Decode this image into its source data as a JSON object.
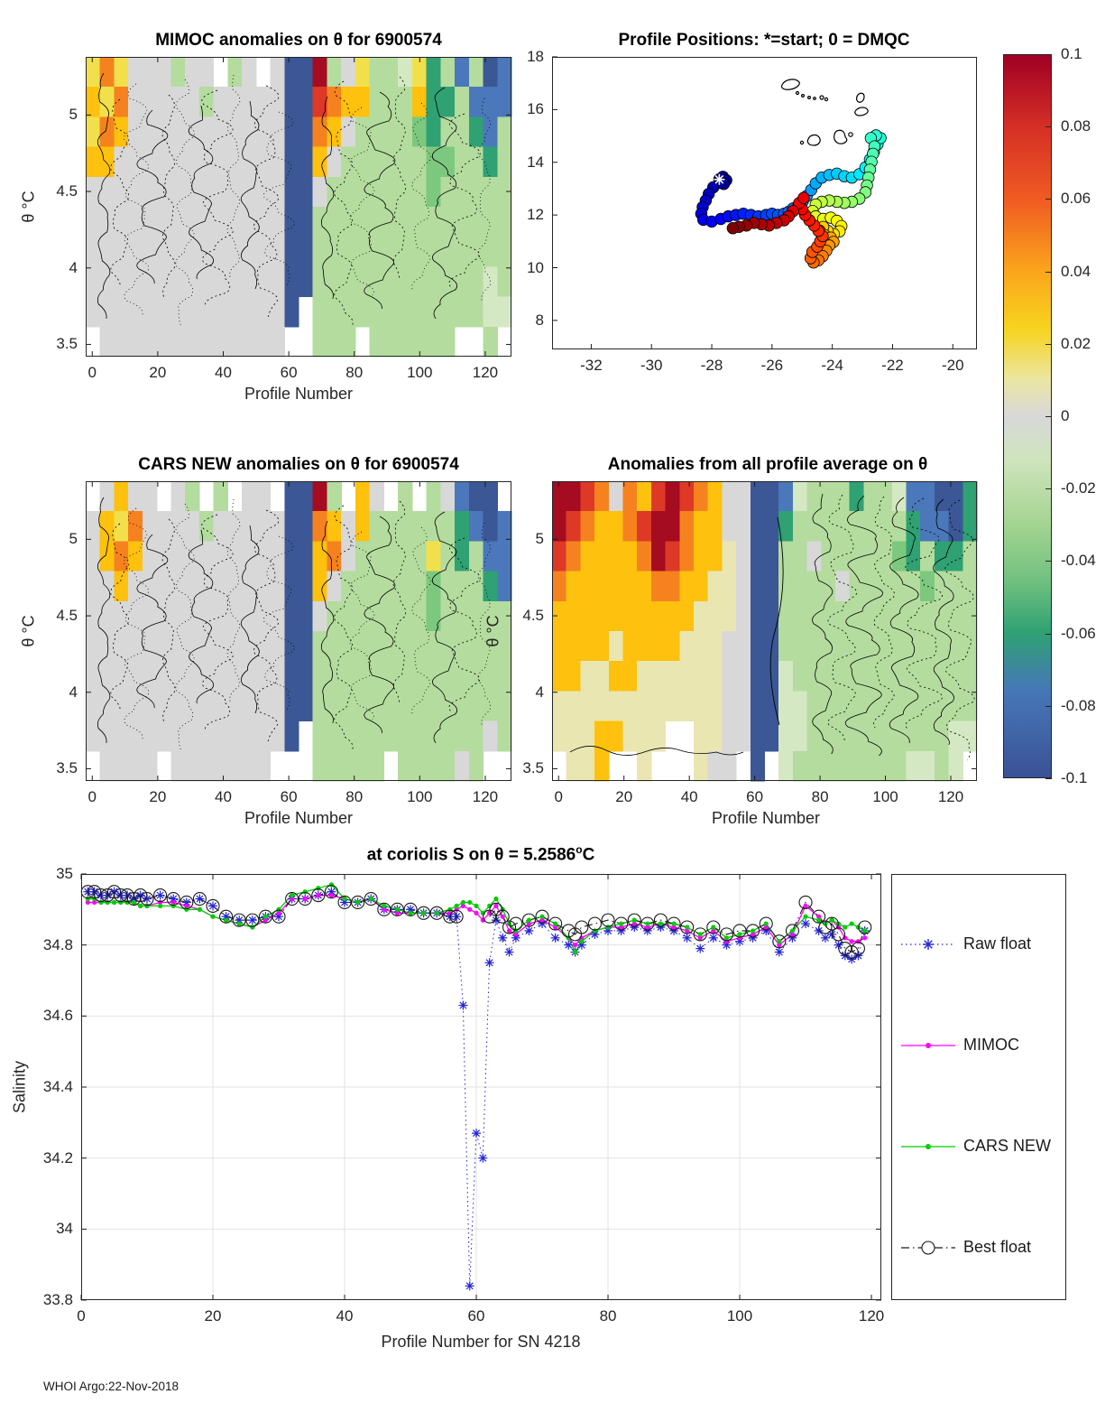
{
  "footer": "WHOI Argo:22-Nov-2018",
  "palette": {
    "R": "#a50b21",
    "r": "#dd3926",
    "o": "#f5821f",
    "y": "#fdc10e",
    "Y": "#f1e04c",
    "p": "#e9e6b2",
    "G": "#d8d8d8",
    "c": "#d5e8c4",
    "g": "#b4dc9e",
    "E": "#7dc87f",
    "T": "#2fa173",
    "B": "#4a78ba",
    "N": "#3b5795"
  },
  "colorbar": {
    "ticks": [
      0.1,
      0.08,
      0.06,
      0.04,
      0.02,
      0,
      -0.02,
      -0.04,
      -0.06,
      -0.08,
      -0.1
    ],
    "stops": [
      [
        0,
        "#9f0024"
      ],
      [
        0.1,
        "#d62f26"
      ],
      [
        0.2,
        "#f05b22"
      ],
      [
        0.3,
        "#fba61c"
      ],
      [
        0.38,
        "#f7d41f"
      ],
      [
        0.45,
        "#ebe6a4"
      ],
      [
        0.5,
        "#d8d8d8"
      ],
      [
        0.56,
        "#cfe4bd"
      ],
      [
        0.65,
        "#a4d491"
      ],
      [
        0.73,
        "#6fc07f"
      ],
      [
        0.8,
        "#2fa173"
      ],
      [
        0.88,
        "#4677b8"
      ],
      [
        1,
        "#3a5295"
      ]
    ]
  },
  "legend": {
    "entries": [
      {
        "label": "Raw float",
        "color": "#2424d9",
        "line": "dotted",
        "marker": "asterisk"
      },
      {
        "label": "MIMOC",
        "color": "#ff00ff",
        "line": "solid",
        "marker": "dot"
      },
      {
        "label": "CARS NEW",
        "color": "#00cc00",
        "line": "solid",
        "marker": "dot"
      },
      {
        "label": "Best float",
        "color": "#1a1a1a",
        "line": "dashdot",
        "marker": "circle"
      }
    ]
  },
  "chart_data": [
    {
      "type": "heatmap",
      "id": "tl",
      "title": "MIMOC anomalies on θ  for 6900574",
      "xlabel": "Profile Number",
      "ylabel": "θ °C",
      "xticks": [
        0,
        20,
        40,
        60,
        80,
        100,
        120
      ],
      "yticks": [
        5,
        4.5,
        4,
        3.5
      ],
      "xlim": [
        -2,
        128
      ],
      "ylim": [
        5.38,
        3.42
      ],
      "value_range": [
        0.1,
        -0.1
      ],
      "grid": [
        "YoYGGGgGGWgGWGNNRgGYggcYTgBgNB",
        "yYoGGGGGgGGGGGNNroyygggyTTgBBB",
        "YoyGGGGGGGGGGGNNoyGggggETggTBg",
        "yyGGGGGGGGGGGGNNyGggggggEEggTg",
        "GGGGGGGGGGGGGGNNGgggggggEggggg",
        "GGGGGGGGGGGGGGNNgggggggggggggg",
        "GGGGGGGGGGGGGGNNgggggggggggggg",
        "GGGGGGGGGGGGGGNNggggggggggggcg",
        "GGGGGGGGGGGGGGNWggggggggggggcc",
        "WGGGGGGGGGGGGGWWgggWggggggWWgW"
      ],
      "contours": "dense"
    },
    {
      "type": "scatter",
      "id": "tr",
      "title": "Profile Positions: *=start; 0 = DMQC",
      "xticks": [
        -32,
        -30,
        -28,
        -26,
        -24,
        -22,
        -20
      ],
      "yticks": [
        18,
        16,
        14,
        12,
        10,
        8
      ],
      "xlim": [
        -33.3,
        -19.2
      ],
      "ylim": [
        18,
        6.9
      ],
      "colormap": "jet-by-profile-order",
      "start_marker": "*",
      "points": [
        [
          -27.75,
          13.35
        ],
        [
          -27.63,
          13.45
        ],
        [
          -27.52,
          13.32
        ],
        [
          -27.6,
          13.18
        ],
        [
          -27.72,
          13.22
        ],
        [
          -27.95,
          13.05
        ],
        [
          -28.1,
          12.8
        ],
        [
          -28.2,
          12.55
        ],
        [
          -28.3,
          12.3
        ],
        [
          -28.35,
          12.05
        ],
        [
          -28.28,
          11.82
        ],
        [
          -28.0,
          11.75
        ],
        [
          -27.7,
          11.85
        ],
        [
          -27.45,
          11.95
        ],
        [
          -27.2,
          12.0
        ],
        [
          -26.95,
          12.05
        ],
        [
          -26.7,
          12.0
        ],
        [
          -26.45,
          11.95
        ],
        [
          -26.2,
          12.0
        ],
        [
          -26.0,
          12.05
        ],
        [
          -25.8,
          12.0
        ],
        [
          -25.6,
          12.05
        ],
        [
          -25.45,
          12.12
        ],
        [
          -25.3,
          12.25
        ],
        [
          -25.12,
          12.38
        ],
        [
          -24.98,
          12.52
        ],
        [
          -24.85,
          12.72
        ],
        [
          -24.7,
          12.95
        ],
        [
          -24.55,
          13.2
        ],
        [
          -24.35,
          13.42
        ],
        [
          -24.1,
          13.52
        ],
        [
          -23.85,
          13.57
        ],
        [
          -23.6,
          13.47
        ],
        [
          -23.35,
          13.42
        ],
        [
          -23.1,
          13.55
        ],
        [
          -22.9,
          13.8
        ],
        [
          -22.75,
          14.1
        ],
        [
          -22.62,
          14.4
        ],
        [
          -22.5,
          14.68
        ],
        [
          -22.4,
          14.92
        ],
        [
          -22.55,
          15.02
        ],
        [
          -22.72,
          14.92
        ],
        [
          -22.6,
          14.6
        ],
        [
          -22.65,
          14.32
        ],
        [
          -22.7,
          14.02
        ],
        [
          -22.75,
          13.72
        ],
        [
          -22.8,
          13.42
        ],
        [
          -22.85,
          13.12
        ],
        [
          -22.9,
          12.86
        ],
        [
          -23.1,
          12.62
        ],
        [
          -23.35,
          12.5
        ],
        [
          -23.6,
          12.46
        ],
        [
          -23.85,
          12.5
        ],
        [
          -24.1,
          12.55
        ],
        [
          -24.35,
          12.5
        ],
        [
          -24.55,
          12.4
        ],
        [
          -24.65,
          12.15
        ],
        [
          -24.55,
          11.95
        ],
        [
          -24.3,
          11.85
        ],
        [
          -24.05,
          11.9
        ],
        [
          -23.85,
          11.78
        ],
        [
          -23.7,
          11.58
        ],
        [
          -23.76,
          11.38
        ],
        [
          -23.95,
          11.28
        ],
        [
          -24.15,
          11.4
        ],
        [
          -24.3,
          11.55
        ],
        [
          -24.42,
          11.4
        ],
        [
          -24.26,
          11.24
        ],
        [
          -24.05,
          11.14
        ],
        [
          -23.96,
          10.98
        ],
        [
          -24.1,
          10.84
        ],
        [
          -24.2,
          10.64
        ],
        [
          -24.32,
          10.44
        ],
        [
          -24.46,
          10.28
        ],
        [
          -24.62,
          10.2
        ],
        [
          -24.72,
          10.36
        ],
        [
          -24.66,
          10.6
        ],
        [
          -24.5,
          10.8
        ],
        [
          -24.4,
          11.0
        ],
        [
          -24.32,
          11.2
        ],
        [
          -24.46,
          11.4
        ],
        [
          -24.6,
          11.6
        ],
        [
          -24.76,
          11.8
        ],
        [
          -24.9,
          12.0
        ],
        [
          -25.0,
          12.22
        ],
        [
          -25.1,
          12.45
        ],
        [
          -24.95,
          12.65
        ],
        [
          -25.3,
          12.15
        ],
        [
          -25.45,
          11.95
        ],
        [
          -25.6,
          11.8
        ],
        [
          -25.85,
          11.7
        ],
        [
          -26.1,
          11.6
        ],
        [
          -26.35,
          11.65
        ],
        [
          -26.6,
          11.7
        ],
        [
          -26.85,
          11.6
        ],
        [
          -27.1,
          11.55
        ],
        [
          -27.3,
          11.5
        ]
      ]
    },
    {
      "type": "heatmap",
      "id": "ml",
      "title": "CARS NEW anomalies on θ for 6900574",
      "xlabel": "Profile Number",
      "ylabel": "θ °C",
      "xticks": [
        0,
        20,
        40,
        60,
        80,
        100,
        120
      ],
      "yticks": [
        5,
        4.5,
        4,
        3.5
      ],
      "xlim": [
        -2,
        128
      ],
      "ylim": [
        5.38,
        3.42
      ],
      "value_range": [
        0.1,
        -0.1
      ],
      "grid": [
        "WGyGGWGgWgWGGWNNRgWyGWgWgGBNNW",
        "GyYoGGGGgGGGGGNNoyGyggggggTBNB",
        "GyoyGGGGGGGGGGNNyoGgggggYgTgBB",
        "GGyGGGGGGGGGGGNNyGggggggEgggTB",
        "GGGGGGGGGGGGGGNNGgggggggEggggg",
        "GGGGGGGGGGGGGGNNgggggggggggggg",
        "GGGGGGGGGGGGGGNNgggggggggggggg",
        "GGGGGGGGGGGGGGNNgggggggggggggg",
        "GGGGGGGGGGGGGGNWggggggggggggGg",
        "WGGGGWGGGGGGGWWWgggggWggggGgWW"
      ],
      "contours": "dense"
    },
    {
      "type": "heatmap",
      "id": "mr",
      "title": "Anomalies from all profile average on θ",
      "xlabel": "Profile Number",
      "ylabel": "θ °C",
      "xticks": [
        0,
        20,
        40,
        60,
        80,
        100,
        120
      ],
      "yticks": [
        5,
        4.5,
        4,
        3.5
      ],
      "xlim": [
        -2,
        128
      ],
      "ylim": [
        5.38,
        3.42
      ],
      "value_range": [
        0.1,
        -0.1
      ],
      "grid": [
        "RRroGoyrRroyGGNNBcgggTggcBBNNT",
        "RroyyorRRoyyGGNNTggggggggTBBNT",
        "royyyyoRroyypGNNggGgggggETgTTg",
        "oyyyyyyooyyppGNNggggGgggggEggg",
        "yyyyyyyyyypppGNNgggggggggggggg",
        "yyyypyyyypppGGNNgggggggggggggg",
        "yyppyyppppppGGNNcggggggggggggg",
        "ppppppppppppGGNNccgggggggggggg",
        "pppyypppWWppGGNNccggggggggggcc",
        "WppyWWpWWWpGGWNWcggggggggccgcW"
      ],
      "contours": "sparse-right"
    },
    {
      "type": "line",
      "id": "bt",
      "title_main": "at coriolis S on θ = 5.2586",
      "title_sup": "o",
      "title_unit": "C",
      "xlabel": "Profile Number for SN 4218",
      "ylabel": "Salinity",
      "xticks": [
        0,
        20,
        40,
        60,
        80,
        100,
        120
      ],
      "yticks": [
        35,
        34.8,
        34.6,
        34.4,
        34.2,
        34,
        33.8
      ],
      "xlim": [
        0,
        121.5
      ],
      "ylim": [
        35,
        33.8
      ],
      "grid": true,
      "x": [
        1,
        2,
        3,
        4,
        5,
        6,
        7,
        8,
        9,
        10,
        12,
        14,
        16,
        18,
        20,
        22,
        24,
        26,
        28,
        30,
        32,
        34,
        36,
        38,
        40,
        42,
        44,
        46,
        48,
        50,
        52,
        54,
        56,
        57,
        58,
        59,
        60,
        61,
        62,
        63,
        64,
        65,
        66,
        68,
        70,
        72,
        74,
        75,
        76,
        78,
        80,
        82,
        84,
        86,
        88,
        90,
        92,
        94,
        96,
        98,
        100,
        102,
        104,
        106,
        108,
        110,
        112,
        113,
        114,
        115,
        116,
        117,
        118,
        119
      ],
      "series": [
        {
          "name": "Raw float",
          "values": [
            34.95,
            34.95,
            34.94,
            34.94,
            34.95,
            34.94,
            34.94,
            34.93,
            34.94,
            34.93,
            34.94,
            34.93,
            34.92,
            34.93,
            34.91,
            34.88,
            34.87,
            34.87,
            34.88,
            34.88,
            34.93,
            34.93,
            34.94,
            34.95,
            34.92,
            34.92,
            34.93,
            34.9,
            34.9,
            34.9,
            34.89,
            34.89,
            34.88,
            34.88,
            34.63,
            33.84,
            34.27,
            34.2,
            34.75,
            34.87,
            34.82,
            34.78,
            34.82,
            34.84,
            34.86,
            34.82,
            34.8,
            34.78,
            34.8,
            34.83,
            34.84,
            34.84,
            34.85,
            34.84,
            34.85,
            34.84,
            34.82,
            34.79,
            34.82,
            34.8,
            34.81,
            34.82,
            34.84,
            34.78,
            34.82,
            34.86,
            34.84,
            34.82,
            34.83,
            34.8,
            34.77,
            34.76,
            34.77,
            34.84
          ]
        },
        {
          "name": "MIMOC",
          "values": [
            34.92,
            34.92,
            34.92,
            34.92,
            34.92,
            34.92,
            34.92,
            34.92,
            34.91,
            34.91,
            34.92,
            34.92,
            34.91,
            34.9,
            34.88,
            34.87,
            34.86,
            34.85,
            34.87,
            34.89,
            34.93,
            34.93,
            34.94,
            34.94,
            34.93,
            34.92,
            34.93,
            34.9,
            34.89,
            34.89,
            34.89,
            34.89,
            34.89,
            34.9,
            34.91,
            34.9,
            34.89,
            34.87,
            34.89,
            34.91,
            34.88,
            34.84,
            34.83,
            34.86,
            34.87,
            34.85,
            34.82,
            34.8,
            34.82,
            34.84,
            34.85,
            34.85,
            34.86,
            34.85,
            34.86,
            34.85,
            34.84,
            34.82,
            34.84,
            34.81,
            34.82,
            34.83,
            34.85,
            34.8,
            34.83,
            34.91,
            34.88,
            34.86,
            34.87,
            34.85,
            34.82,
            34.81,
            34.81,
            34.82
          ]
        },
        {
          "name": "CARS NEW",
          "values": [
            34.93,
            34.93,
            34.92,
            34.92,
            34.92,
            34.92,
            34.92,
            34.92,
            34.91,
            34.91,
            34.91,
            34.91,
            34.9,
            34.9,
            34.88,
            34.87,
            34.86,
            34.85,
            34.88,
            34.9,
            34.94,
            34.95,
            34.96,
            34.97,
            34.93,
            34.92,
            34.93,
            34.91,
            34.9,
            34.89,
            34.89,
            34.89,
            34.9,
            34.91,
            34.92,
            34.92,
            34.91,
            34.89,
            34.91,
            34.93,
            34.9,
            34.86,
            34.84,
            34.87,
            34.88,
            34.86,
            34.82,
            34.78,
            34.81,
            34.84,
            34.85,
            34.86,
            34.87,
            34.86,
            34.86,
            34.86,
            34.85,
            34.83,
            34.85,
            34.82,
            34.83,
            34.84,
            34.86,
            34.81,
            34.84,
            34.88,
            34.87,
            34.86,
            34.87,
            34.86,
            34.85,
            34.86,
            34.85,
            34.84
          ]
        },
        {
          "name": "Best float",
          "values": [
            34.95,
            34.95,
            34.94,
            34.94,
            34.95,
            34.94,
            34.94,
            34.93,
            34.94,
            34.93,
            34.94,
            34.93,
            34.92,
            34.93,
            34.91,
            34.88,
            34.87,
            34.87,
            34.88,
            34.88,
            34.93,
            34.93,
            34.94,
            34.95,
            34.92,
            34.92,
            34.93,
            34.9,
            34.9,
            34.9,
            34.89,
            34.89,
            34.88,
            34.88,
            null,
            null,
            null,
            null,
            34.88,
            34.9,
            34.88,
            34.85,
            34.86,
            34.87,
            34.88,
            34.86,
            34.84,
            34.83,
            34.85,
            34.86,
            34.87,
            34.86,
            34.87,
            34.86,
            34.87,
            34.86,
            34.85,
            34.83,
            34.85,
            34.83,
            34.84,
            34.84,
            34.86,
            34.81,
            34.84,
            34.92,
            34.88,
            34.85,
            34.86,
            34.83,
            34.79,
            34.78,
            34.79,
            34.85
          ]
        }
      ]
    }
  ]
}
